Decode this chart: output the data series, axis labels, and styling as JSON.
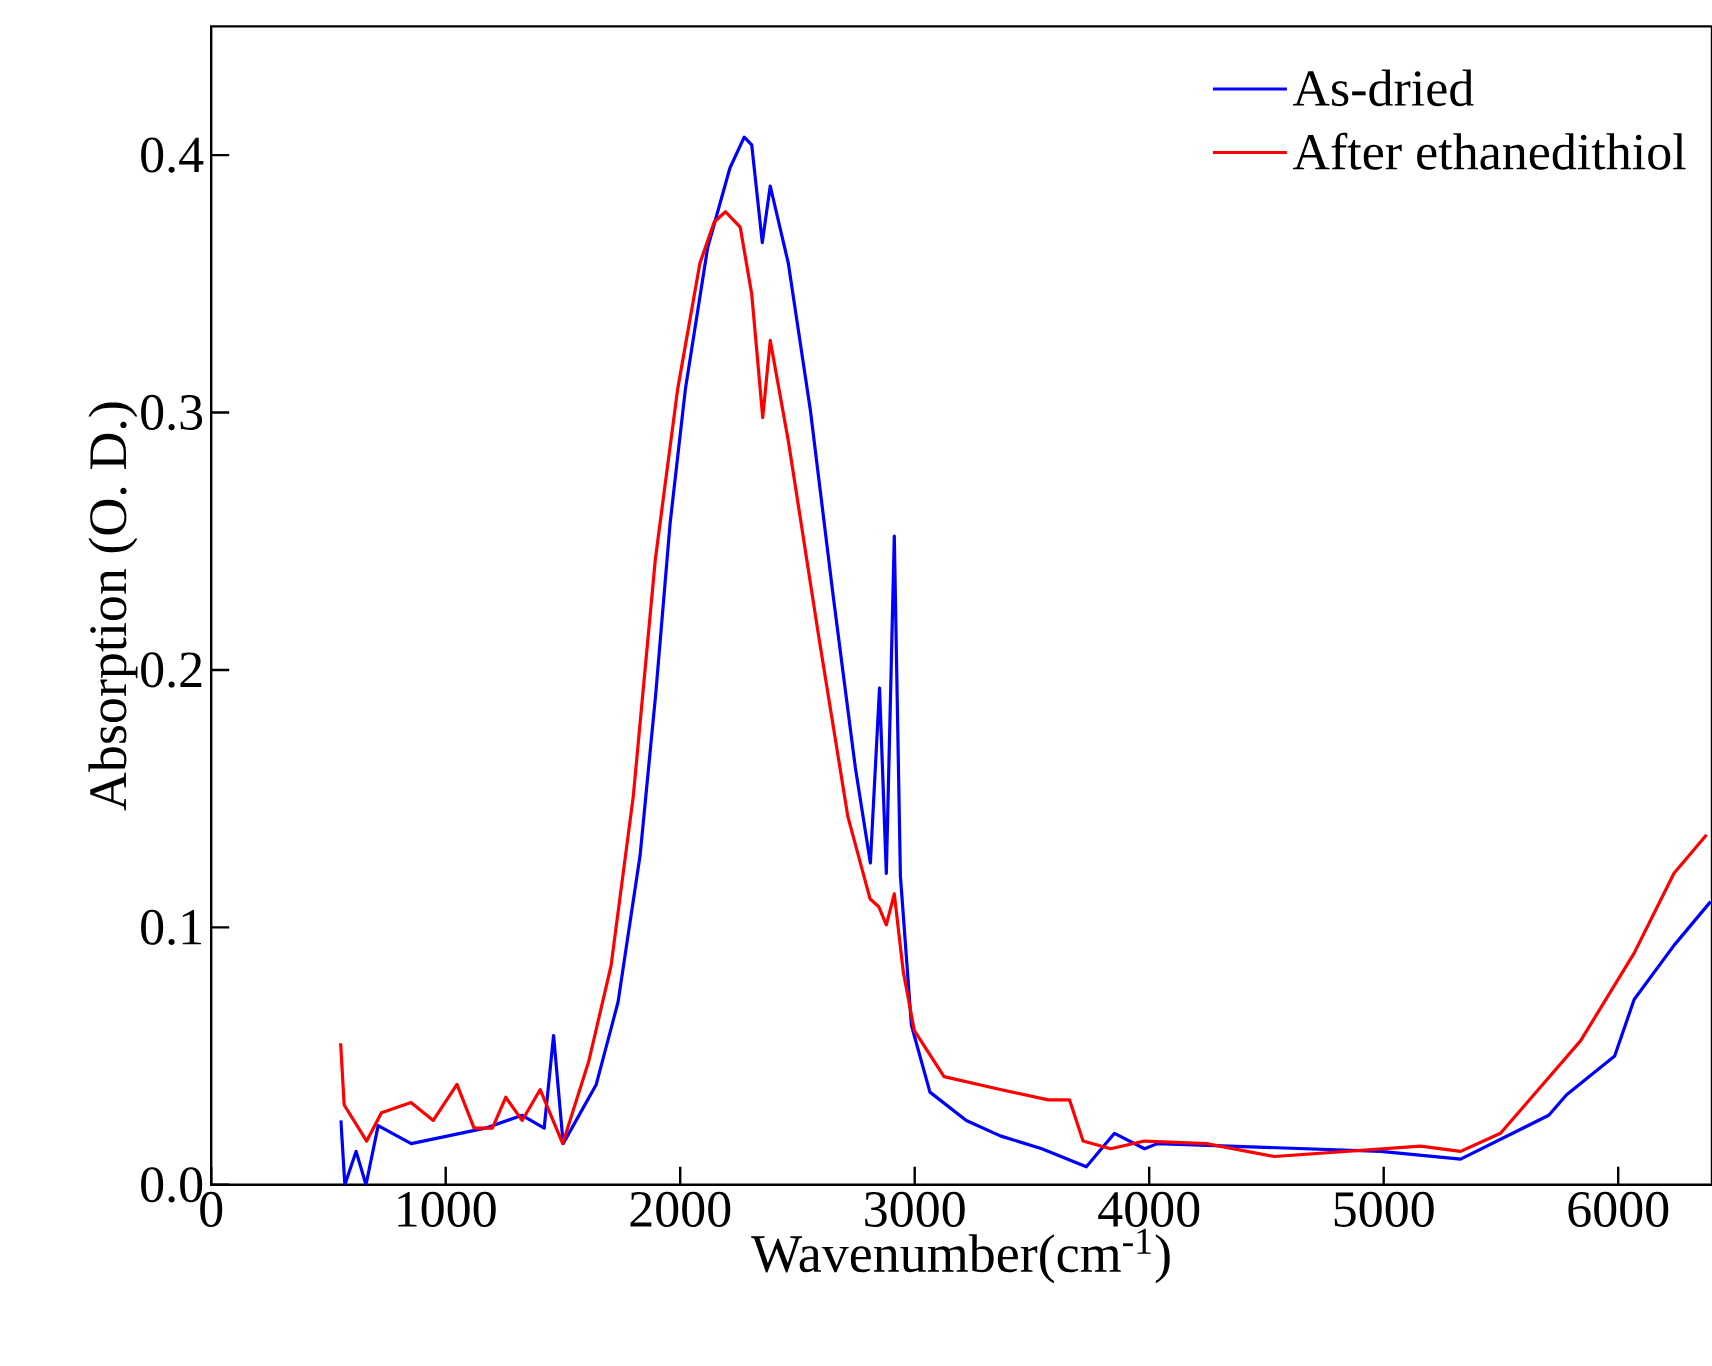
{
  "chart_data": {
    "type": "line",
    "xlabel": "Wavenumber(cm$^{-1}$)",
    "ylabel": "Absorption (O. D.)",
    "xlim": [
      0,
      6400
    ],
    "ylim": [
      0,
      0.45
    ],
    "xticks": [
      0,
      1000,
      2000,
      3000,
      4000,
      5000,
      6000
    ],
    "yticks": [
      {
        "value": 0,
        "label": "0.0"
      },
      0.1,
      0.2,
      0.3,
      0.4
    ],
    "legend": "top right",
    "grid": false,
    "marker": "none",
    "line_style": "solid",
    "series": [
      {
        "name": "As-dried",
        "color": "#0000ff",
        "x": [
          553,
          570,
          618,
          660,
          712,
          853,
          1169,
          1326,
          1420,
          1460,
          1501,
          1642,
          1735,
          1829,
          1896,
          1957,
          2022,
          2117,
          2212,
          2273,
          2305,
          2350,
          2384,
          2461,
          2555,
          2652,
          2747,
          2811,
          2850,
          2879,
          2913,
          2939,
          2986,
          3065,
          3220,
          3365,
          3542,
          3732,
          3852,
          3980,
          4035,
          4987,
          5328,
          5704,
          5780,
          5985,
          6068,
          6238,
          6394
        ],
        "values": [
          0.025,
          0.0,
          0.013,
          0.0,
          0.023,
          0.016,
          0.022,
          0.027,
          0.022,
          0.058,
          0.016,
          0.039,
          0.071,
          0.128,
          0.191,
          0.257,
          0.309,
          0.364,
          0.395,
          0.407,
          0.404,
          0.366,
          0.388,
          0.358,
          0.301,
          0.229,
          0.162,
          0.125,
          0.193,
          0.121,
          0.252,
          0.12,
          0.062,
          0.036,
          0.025,
          0.019,
          0.014,
          0.007,
          0.02,
          0.014,
          0.016,
          0.013,
          0.01,
          0.027,
          0.035,
          0.05,
          0.072,
          0.093,
          0.11
        ]
      },
      {
        "name": "After ethanedithiol",
        "color": "#ff0000",
        "x": [
          552,
          567,
          663,
          726,
          852,
          947,
          1048,
          1121,
          1199,
          1256,
          1326,
          1403,
          1499,
          1610,
          1705,
          1800,
          1894,
          1989,
          2084,
          2145,
          2193,
          2256,
          2305,
          2352,
          2384,
          2461,
          2589,
          2715,
          2810,
          2847,
          2879,
          2913,
          2951,
          2998,
          3125,
          3365,
          3570,
          3660,
          3718,
          3835,
          3980,
          4244,
          4534,
          5157,
          5328,
          5498,
          5840,
          6068,
          6238,
          6377
        ],
        "values": [
          0.055,
          0.031,
          0.017,
          0.028,
          0.032,
          0.025,
          0.039,
          0.022,
          0.022,
          0.034,
          0.025,
          0.037,
          0.016,
          0.048,
          0.085,
          0.151,
          0.243,
          0.309,
          0.358,
          0.374,
          0.378,
          0.372,
          0.346,
          0.298,
          0.328,
          0.289,
          0.214,
          0.143,
          0.111,
          0.108,
          0.101,
          0.113,
          0.083,
          0.06,
          0.042,
          0.037,
          0.033,
          0.033,
          0.017,
          0.014,
          0.017,
          0.016,
          0.011,
          0.015,
          0.013,
          0.02,
          0.056,
          0.09,
          0.121,
          0.136
        ]
      }
    ]
  }
}
